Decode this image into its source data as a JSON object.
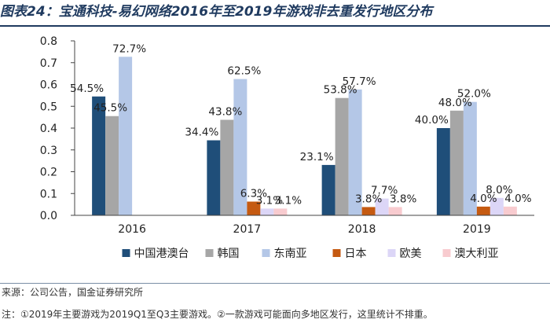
{
  "title": "图表24：宝通科技-易幻网络2016年至2019年游戏非去重发行地区分布",
  "source": "来源：公司公告，国金证券研究所",
  "footnote": "注：①2019年主要游戏为2019Q1至Q3主要游戏。②一款游戏可能面向多地区发行，这里统计不排重。",
  "chart_data": {
    "type": "bar",
    "categories": [
      "2016",
      "2017",
      "2018",
      "2019"
    ],
    "ylim": [
      0,
      0.8
    ],
    "yticks": [
      "0.0",
      "0.1",
      "0.2",
      "0.3",
      "0.4",
      "0.5",
      "0.6",
      "0.7",
      "0.8"
    ],
    "grid": false,
    "legend_position": "bottom",
    "series": [
      {
        "name": "中国港澳台",
        "color": "#1f4e79",
        "values": [
          0.545,
          0.344,
          0.231,
          0.4
        ],
        "labels": [
          "54.5%",
          "34.4%",
          "23.1%",
          "40.0%"
        ]
      },
      {
        "name": "韩国",
        "color": "#a6a6a6",
        "values": [
          0.455,
          0.438,
          0.538,
          0.48
        ],
        "labels": [
          "45.5%",
          "43.8%",
          "53.8%",
          "48.0%"
        ]
      },
      {
        "name": "东南亚",
        "color": "#b4c7e7",
        "values": [
          0.727,
          0.625,
          0.577,
          0.52
        ],
        "labels": [
          "72.7%",
          "62.5%",
          "57.7%",
          "52.0%"
        ]
      },
      {
        "name": "日本",
        "color": "#c55a11",
        "values": [
          0,
          0.063,
          0.038,
          0.04
        ],
        "labels": [
          "",
          "6.3%",
          "3.8%",
          "4.0%"
        ]
      },
      {
        "name": "欧美",
        "color": "#dcd6f7",
        "values": [
          0,
          0.031,
          0.077,
          0.08
        ],
        "labels": [
          "",
          "3.1%",
          "7.7%",
          "8.0%"
        ]
      },
      {
        "name": "澳大利亚",
        "color": "#f8cbcf",
        "values": [
          0,
          0.031,
          0.038,
          0.04
        ],
        "labels": [
          "",
          "3.1%",
          "3.8%",
          "4.0%"
        ]
      }
    ]
  }
}
